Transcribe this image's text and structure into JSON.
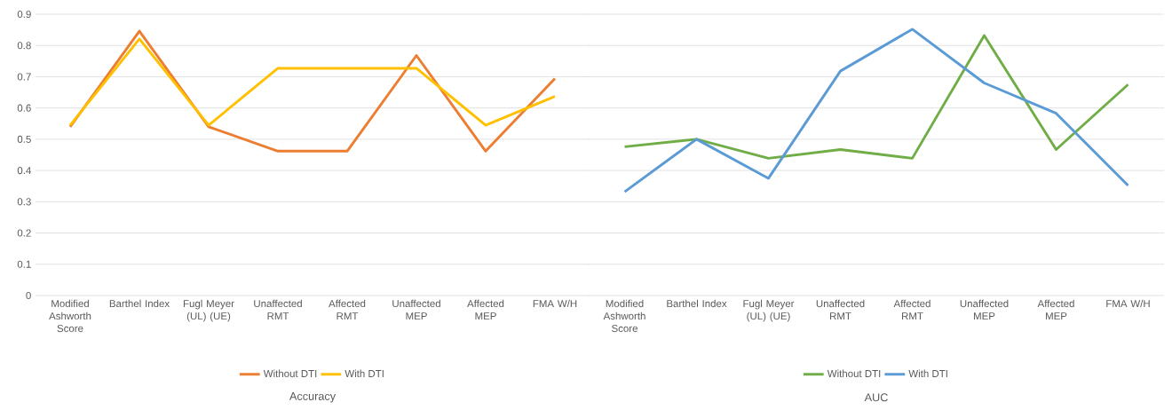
{
  "chart_data": [
    {
      "type": "line",
      "xlabel": "Accuracy",
      "categories": [
        "Modified Ashworth Score",
        "Barthel Index",
        "Fugl Meyer (UL) (UE)",
        "Unaffected RMT",
        "Affected RMT",
        "Unaffected MEP",
        "Affected MEP",
        "FMA W/H"
      ],
      "series": [
        {
          "name": "Without DTI",
          "color": "#ed7d31",
          "values": [
            0.54,
            0.846,
            0.54,
            0.462,
            0.462,
            0.768,
            0.462,
            0.694
          ]
        },
        {
          "name": "With DTI",
          "color": "#ffc000",
          "values": [
            0.545,
            0.821,
            0.545,
            0.727,
            0.727,
            0.727,
            0.545,
            0.637
          ]
        }
      ],
      "ylim": [
        0,
        0.9
      ],
      "yticks": [
        0,
        0.1,
        0.2,
        0.3,
        0.4,
        0.5,
        0.6,
        0.7,
        0.8,
        0.9
      ],
      "grid": "y",
      "legend": "bottom",
      "marker": "none"
    },
    {
      "type": "line",
      "xlabel": "AUC",
      "categories": [
        "Modified Ashworth Score",
        "Barthel Index",
        "Fugl Meyer (UL) (UE)",
        "Unaffected RMT",
        "Affected RMT",
        "Unaffected MEP",
        "Affected MEP",
        "FMA W/H"
      ],
      "series": [
        {
          "name": "Without DTI",
          "color": "#70ad47",
          "values": [
            0.476,
            0.5,
            0.439,
            0.467,
            0.439,
            0.832,
            0.467,
            0.675
          ]
        },
        {
          "name": "With DTI",
          "color": "#5b9bd5",
          "values": [
            0.332,
            0.5,
            0.375,
            0.718,
            0.852,
            0.68,
            0.583,
            0.352
          ]
        }
      ],
      "ylim": [
        0,
        0.9
      ],
      "yticks": [
        0,
        0.1,
        0.2,
        0.3,
        0.4,
        0.5,
        0.6,
        0.7,
        0.8,
        0.9
      ],
      "grid": "y",
      "legend": "bottom",
      "marker": "none",
      "tick_labels": "x"
    }
  ]
}
